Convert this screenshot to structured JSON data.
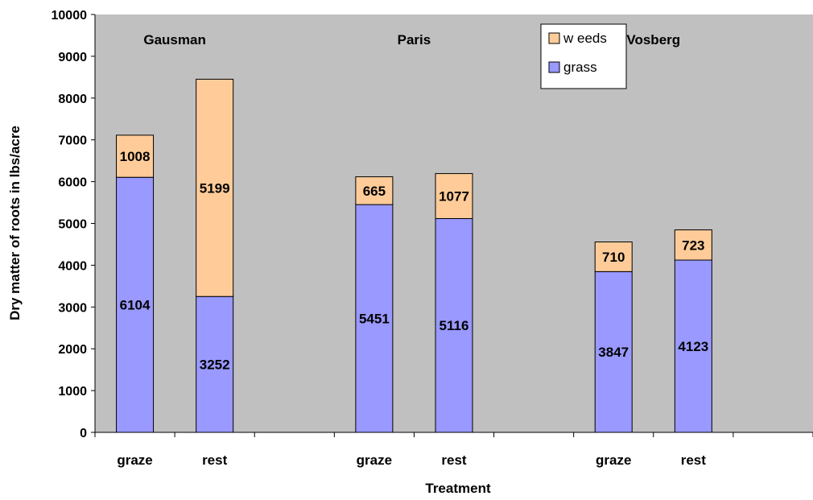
{
  "chart_data": {
    "type": "bar",
    "stacked": true,
    "ylabel": "Dry matter of roots in lbs/acre",
    "xlabel": "Treatment",
    "ylim": [
      0,
      10000
    ],
    "yticks": [
      0,
      1000,
      2000,
      3000,
      4000,
      5000,
      6000,
      7000,
      8000,
      9000,
      10000
    ],
    "grid": false,
    "legend_position": "top-center",
    "groups": [
      {
        "name": "Gausman",
        "categories": [
          "graze",
          "rest"
        ]
      },
      {
        "name": "Paris",
        "categories": [
          "graze",
          "rest"
        ]
      },
      {
        "name": "Vosberg",
        "categories": [
          "graze",
          "rest"
        ]
      }
    ],
    "categories": [
      "graze",
      "rest",
      "graze",
      "rest",
      "graze",
      "rest"
    ],
    "series": [
      {
        "name": "grass",
        "color": "#9999ff",
        "values": [
          6104,
          3252,
          5451,
          5116,
          3847,
          4123
        ]
      },
      {
        "name": "weeds",
        "color": "#ffcc99",
        "values": [
          1008,
          5199,
          665,
          1077,
          710,
          723
        ]
      }
    ],
    "legend": [
      {
        "text": "w eeds",
        "color": "#ffcc99"
      },
      {
        "text": "grass",
        "color": "#9999ff"
      }
    ],
    "plot_background": "#c0c0c0"
  }
}
